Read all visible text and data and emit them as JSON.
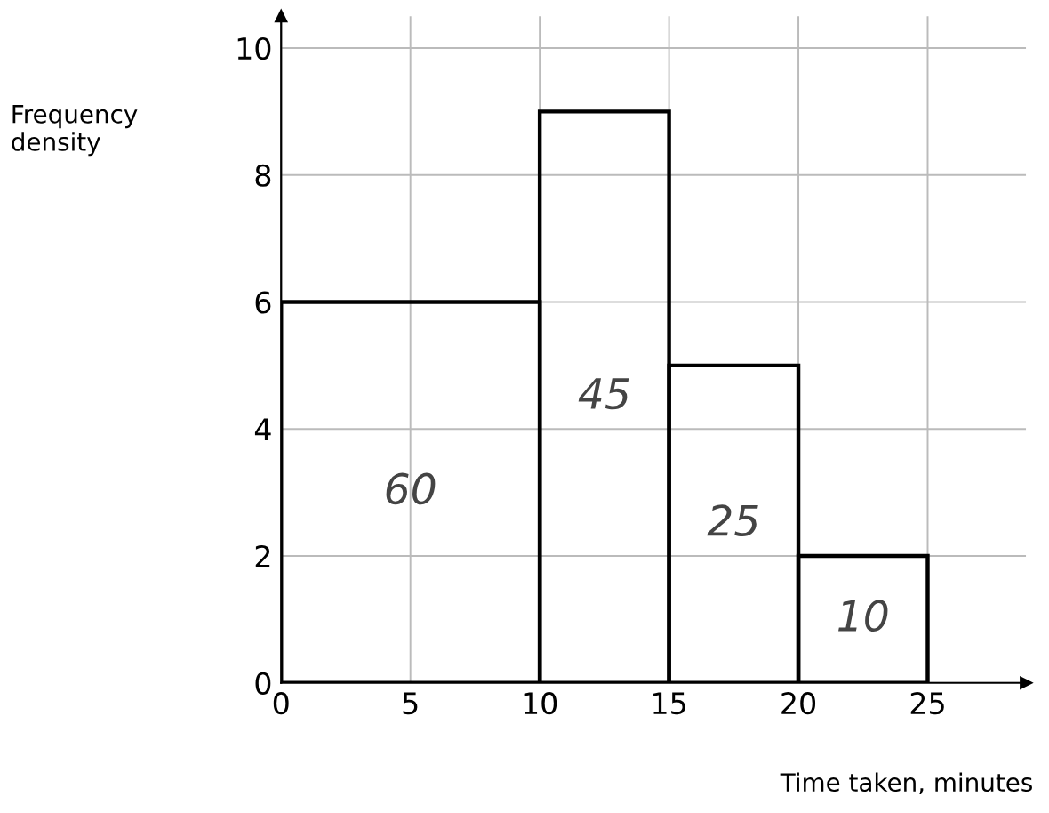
{
  "chart_data": {
    "type": "histogram",
    "xlabel": "Time taken, minutes",
    "ylabel": "Frequency\ndensity",
    "bins": [
      0,
      10,
      15,
      20,
      25
    ],
    "values": [
      6,
      9,
      5,
      2
    ],
    "annotations": [
      "60",
      "45",
      "25",
      "10"
    ],
    "color": "#000000",
    "xlim": [
      0,
      28.8
    ],
    "ylim": [
      0,
      10.5
    ],
    "xticks": [
      0,
      5,
      10,
      15,
      20,
      25
    ],
    "yticks": [
      0,
      2,
      4,
      6,
      8,
      10
    ],
    "grid": true
  }
}
